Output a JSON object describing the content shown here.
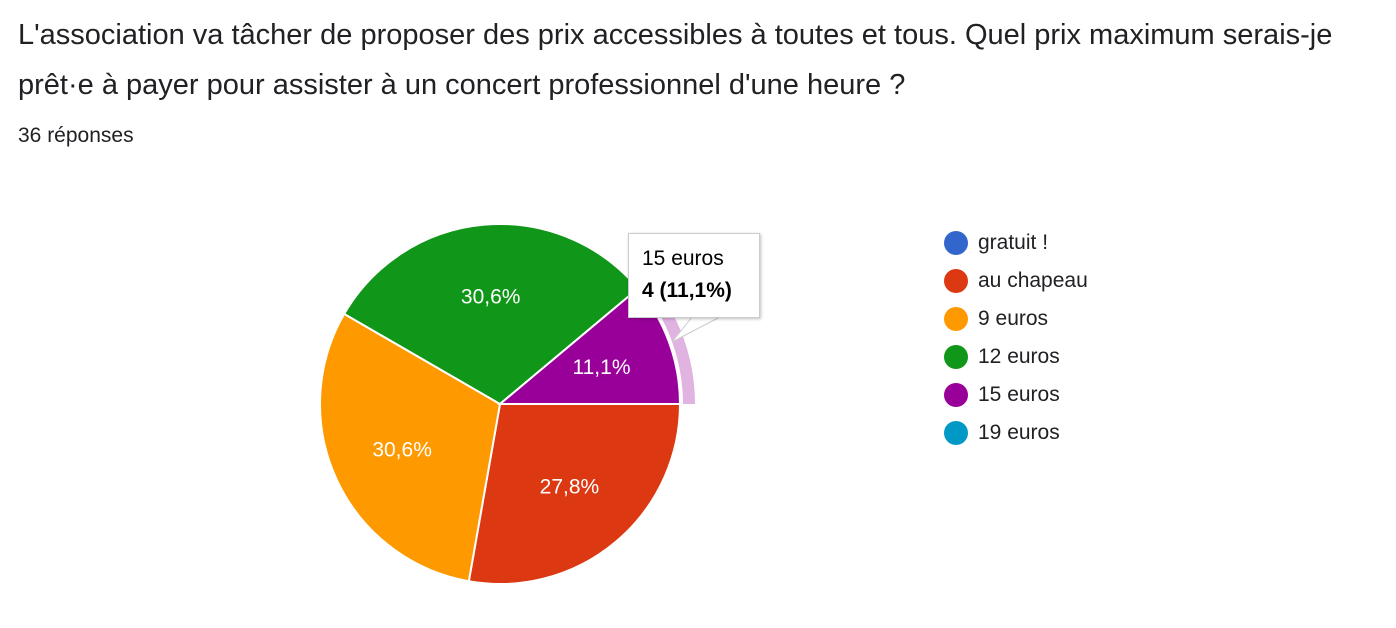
{
  "question": {
    "title": "L'association va tâcher de proposer des prix accessibles à toutes et tous. Quel prix maximum serais-je prêt·e à payer pour assister à un concert professionnel d'une heure ?",
    "responses": "36 réponses"
  },
  "chart_data": {
    "type": "pie",
    "slices": [
      {
        "label": "gratuit !",
        "value": 0,
        "count": 0,
        "color": "#3366cc",
        "display": ""
      },
      {
        "label": "au chapeau",
        "value": 27.8,
        "count": 10,
        "color": "#dc3912",
        "display": "27,8%"
      },
      {
        "label": "9 euros",
        "value": 30.6,
        "count": 11,
        "color": "#ff9900",
        "display": "30,6%"
      },
      {
        "label": "12 euros",
        "value": 30.6,
        "count": 11,
        "color": "#109618",
        "display": "30,6%"
      },
      {
        "label": "15 euros",
        "value": 11.1,
        "count": 4,
        "color": "#990099",
        "display": "11,1%"
      },
      {
        "label": "19 euros",
        "value": 0,
        "count": 0,
        "color": "#0099c6",
        "display": ""
      }
    ],
    "highlighted": "15 euros",
    "legend_position": "right"
  },
  "tooltip": {
    "label": "15 euros",
    "value": "4 (11,1%)"
  }
}
